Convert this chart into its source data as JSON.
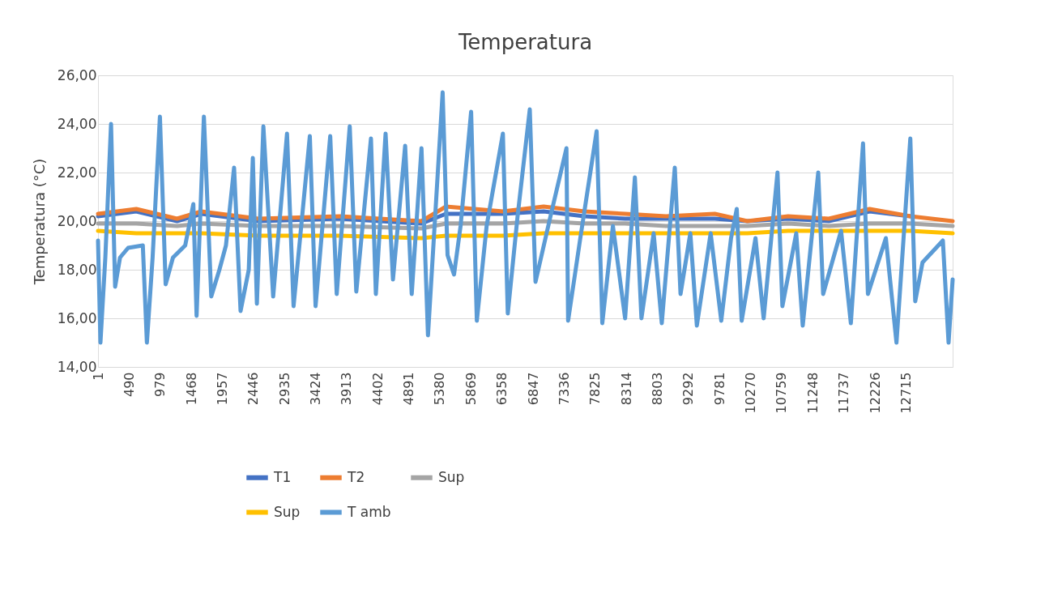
{
  "chart_data": {
    "type": "line",
    "title": "Temperatura",
    "ylabel": "Temperatura (°C)",
    "ylim": [
      14,
      26
    ],
    "yticks": [
      {
        "value": 14,
        "label": "14,00"
      },
      {
        "value": 16,
        "label": "16,00"
      },
      {
        "value": 18,
        "label": "18,00"
      },
      {
        "value": 20,
        "label": "20,00"
      },
      {
        "value": 22,
        "label": "22,00"
      },
      {
        "value": 24,
        "label": "24,00"
      },
      {
        "value": 26,
        "label": "26,00"
      }
    ],
    "xlim": [
      1,
      13449
    ],
    "xticks": [
      1,
      490,
      979,
      1468,
      1957,
      2446,
      2935,
      3424,
      3913,
      4402,
      4891,
      5380,
      5869,
      6358,
      6847,
      7336,
      7825,
      8314,
      8803,
      9292,
      9781,
      10270,
      10759,
      11248,
      11737,
      12226,
      12715
    ],
    "grid": "y",
    "legend": "bottom",
    "marker": "none",
    "line_style": "solid",
    "series": [
      {
        "name": "T1",
        "color": "#4472c4",
        "x": [
          1,
          603,
          1244,
          1629,
          2526,
          3808,
          5091,
          5475,
          6372,
          7013,
          7654,
          8295,
          8937,
          9706,
          10219,
          10860,
          11501,
          12142,
          12783
        ],
        "values": [
          20.2,
          20.4,
          20.0,
          20.3,
          20.0,
          20.1,
          19.9,
          20.3,
          20.3,
          20.4,
          20.2,
          20.1,
          20.1,
          20.1,
          20.0,
          20.1,
          20.0,
          20.4,
          20.2
        ]
      },
      {
        "name": "T2",
        "color": "#ed7d31",
        "x": [
          1,
          603,
          1244,
          1629,
          2526,
          3808,
          5091,
          5475,
          6372,
          7013,
          7654,
          8295,
          8937,
          9706,
          10219,
          10860,
          11501,
          12142,
          12783,
          13449
        ],
        "values": [
          20.3,
          20.5,
          20.1,
          20.4,
          20.1,
          20.2,
          20.0,
          20.6,
          20.4,
          20.6,
          20.4,
          20.3,
          20.2,
          20.3,
          20.0,
          20.2,
          20.1,
          20.5,
          20.2,
          20.0
        ]
      },
      {
        "name": "Sup",
        "color": "#a5a5a5",
        "x": [
          1,
          603,
          1244,
          1629,
          2526,
          3808,
          5091,
          5475,
          6372,
          7013,
          7654,
          8295,
          8937,
          9706,
          10219,
          10860,
          11501,
          12142,
          12783,
          13449
        ],
        "values": [
          19.9,
          19.9,
          19.8,
          19.9,
          19.8,
          19.8,
          19.7,
          19.9,
          19.9,
          20.0,
          19.9,
          19.9,
          19.8,
          19.8,
          19.8,
          19.9,
          19.8,
          19.9,
          19.9,
          19.8
        ]
      },
      {
        "name": "Sup",
        "color": "#ffc000",
        "x": [
          1,
          603,
          1244,
          1629,
          2526,
          3808,
          5091,
          5475,
          6372,
          7013,
          7654,
          8295,
          8937,
          9706,
          10219,
          10860,
          11501,
          12142,
          12783,
          13449
        ],
        "values": [
          19.6,
          19.5,
          19.5,
          19.5,
          19.4,
          19.4,
          19.3,
          19.4,
          19.4,
          19.5,
          19.5,
          19.5,
          19.5,
          19.5,
          19.5,
          19.6,
          19.6,
          19.6,
          19.6,
          19.5
        ]
      },
      {
        "name": "T amb",
        "color": "#5b9bd5",
        "x": [
          1,
          39,
          116,
          206,
          270,
          347,
          475,
          706,
          770,
          860,
          975,
          1065,
          1180,
          1373,
          1501,
          1552,
          1667,
          1783,
          1911,
          2014,
          2142,
          2244,
          2373,
          2437,
          2501,
          2603,
          2757,
          2975,
          3078,
          3334,
          3424,
          3655,
          3757,
          3962,
          4065,
          4296,
          4373,
          4526,
          4642,
          4834,
          4937,
          5091,
          5193,
          5424,
          5501,
          5603,
          5706,
          5872,
          5962,
          6116,
          6372,
          6449,
          6603,
          6795,
          6885,
          7103,
          7372,
          7398,
          7590,
          7847,
          7936,
          8103,
          8295,
          8449,
          8552,
          8744,
          8872,
          9077,
          9167,
          9321,
          9424,
          9641,
          9808,
          9962,
          10052,
          10129,
          10347,
          10475,
          10693,
          10770,
          10988,
          11090,
          11334,
          11411,
          11693,
          11847,
          12039,
          12116,
          12398,
          12565,
          12783,
          12860,
          12975,
          13295,
          13385,
          13449
        ],
        "values": [
          19.2,
          15.0,
          18.5,
          24.0,
          17.3,
          18.5,
          18.9,
          19.0,
          15.0,
          18.5,
          24.3,
          17.4,
          18.5,
          19.0,
          20.7,
          16.1,
          24.3,
          16.9,
          18.0,
          19.0,
          22.2,
          16.3,
          18.0,
          22.6,
          16.6,
          23.9,
          16.9,
          23.6,
          16.5,
          23.5,
          16.5,
          23.5,
          17.0,
          23.9,
          17.1,
          23.4,
          17.0,
          23.6,
          17.6,
          23.1,
          17.0,
          23.0,
          15.3,
          25.3,
          18.6,
          17.8,
          19.8,
          24.5,
          15.9,
          19.8,
          23.6,
          16.2,
          20.2,
          24.6,
          17.5,
          20.0,
          23.0,
          15.9,
          19.3,
          23.7,
          15.8,
          19.8,
          16.0,
          21.8,
          16.0,
          19.5,
          15.8,
          22.2,
          17.0,
          19.5,
          15.7,
          19.5,
          15.9,
          19.3,
          20.5,
          15.9,
          19.3,
          16.0,
          22.0,
          16.5,
          19.5,
          15.7,
          22.0,
          17.0,
          19.6,
          15.8,
          23.2,
          17.0,
          19.3,
          15.0,
          23.4,
          16.7,
          18.3,
          19.2,
          15.0,
          17.6
        ]
      }
    ]
  }
}
